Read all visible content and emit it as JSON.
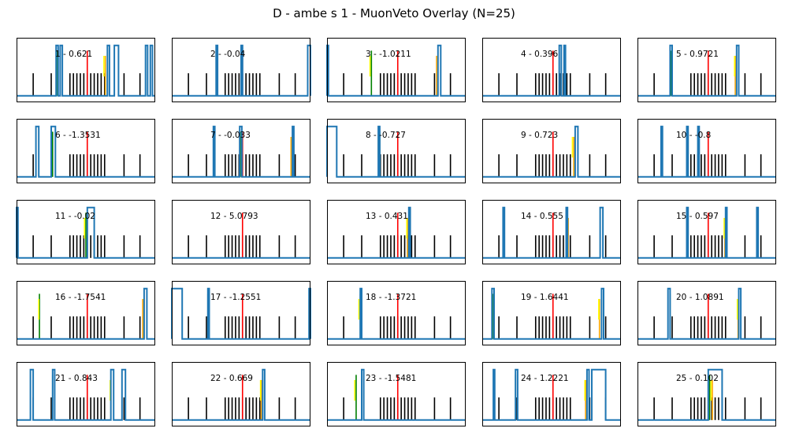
{
  "title": "D - ambe s 1 - MuonVeto Overlay (N=25)",
  "chart_data": {
    "type": "line",
    "title": "D - ambe s 1 - MuonVeto Overlay (N=25)",
    "xlim": [
      0,
      1
    ],
    "ylim": [
      0,
      1
    ],
    "baseline": 0.1,
    "colors": {
      "trace": "#1f77b4",
      "tick": "#000000",
      "red": "#ff0000",
      "green": "#008000",
      "yellow": "#ffff00",
      "orange": "#ffa500"
    },
    "reference_ticks": {
      "x": [
        0.12,
        0.25,
        0.385,
        0.41,
        0.435,
        0.46,
        0.485,
        0.51,
        0.535,
        0.56,
        0.585,
        0.61,
        0.635,
        0.775,
        0.89
      ],
      "height": 0.35
    },
    "red_line": {
      "x": 0.51,
      "height": 0.7
    },
    "panels": [
      {
        "label": "1 - 0.621",
        "green": 0.29,
        "yellow": 0.63,
        "orange": 0.64,
        "pulses": [
          [
            0.285,
            0.3
          ],
          [
            0.315,
            0.33
          ],
          [
            0.655,
            0.67
          ],
          [
            0.705,
            0.735
          ],
          [
            0.93,
            0.945
          ],
          [
            0.965,
            0.98
          ]
        ]
      },
      {
        "label": "2 - -0.04",
        "green": null,
        "yellow": null,
        "orange": 0.5,
        "pulses": [
          [
            0.32,
            0.33
          ],
          [
            0.5,
            0.51
          ],
          [
            0.98,
            1.0
          ]
        ]
      },
      {
        "label": "3 - -1.0211",
        "green": 0.32,
        "yellow": 0.31,
        "orange": 0.79,
        "pulses": [
          [
            0.0,
            0.01
          ],
          [
            0.8,
            0.82
          ]
        ]
      },
      {
        "label": "4 - 0.396",
        "green": null,
        "yellow": 0.59,
        "orange": 0.6,
        "pulses": [
          [
            0.555,
            0.57
          ],
          [
            0.59,
            0.6
          ]
        ]
      },
      {
        "label": "5 - 0.9721",
        "green": 0.24,
        "yellow": 0.7,
        "orange": 0.705,
        "pulses": [
          [
            0.235,
            0.25
          ],
          [
            0.715,
            0.73
          ]
        ]
      },
      {
        "label": "6 - -1.3531",
        "green": 0.26,
        "yellow": 0.25,
        "orange": null,
        "pulses": [
          [
            0.14,
            0.16
          ],
          [
            0.25,
            0.28
          ]
        ]
      },
      {
        "label": "7 - -0.033",
        "green": 0.5,
        "yellow": 0.49,
        "orange": 0.86,
        "pulses": [
          [
            0.3,
            0.31
          ],
          [
            0.49,
            0.505
          ],
          [
            0.87,
            0.88
          ]
        ]
      },
      {
        "label": "8 - -0.727",
        "green": 0.38,
        "yellow": 0.37,
        "orange": null,
        "pulses": [
          [
            0.0,
            0.07
          ],
          [
            0.37,
            0.38
          ]
        ]
      },
      {
        "label": "9 - 0.723",
        "green": null,
        "yellow": 0.65,
        "orange": 0.66,
        "pulses": [
          [
            0.67,
            0.69
          ]
        ]
      },
      {
        "label": "10 - -0.8",
        "green": 0.365,
        "yellow": 0.36,
        "orange": null,
        "pulses": [
          [
            0.17,
            0.18
          ],
          [
            0.355,
            0.365
          ],
          [
            0.435,
            0.445
          ]
        ]
      },
      {
        "label": "11 - -0.02",
        "green": 0.5,
        "yellow": 0.49,
        "orange": null,
        "pulses": [
          [
            0.0,
            0.01
          ],
          [
            0.51,
            0.56
          ]
        ]
      },
      {
        "label": "12 - 5.0793",
        "green": null,
        "yellow": null,
        "orange": null,
        "pulses": []
      },
      {
        "label": "13 - 0.431",
        "green": null,
        "yellow": 0.575,
        "orange": 0.58,
        "pulses": [
          [
            0.59,
            0.6
          ]
        ]
      },
      {
        "label": "14 - 0.555",
        "green": 0.15,
        "yellow": 0.61,
        "orange": 0.62,
        "pulses": [
          [
            0.15,
            0.16
          ],
          [
            0.605,
            0.615
          ],
          [
            0.85,
            0.87
          ]
        ]
      },
      {
        "label": "15 - 0.597",
        "green": 0.36,
        "yellow": 0.625,
        "orange": 0.63,
        "pulses": [
          [
            0.355,
            0.365
          ],
          [
            0.635,
            0.645
          ],
          [
            0.86,
            0.87
          ]
        ]
      },
      {
        "label": "16 - -1.7541",
        "green": 0.165,
        "yellow": 0.16,
        "orange": 0.91,
        "pulses": [
          [
            0.92,
            0.94
          ]
        ]
      },
      {
        "label": "17 - -1.2551",
        "green": 0.26,
        "yellow": 0.265,
        "orange": 0.99,
        "pulses": [
          [
            0.0,
            0.075
          ],
          [
            0.26,
            0.27
          ],
          [
            0.99,
            1.0
          ]
        ]
      },
      {
        "label": "18 - -1.3721",
        "green": 0.24,
        "yellow": 0.23,
        "orange": null,
        "pulses": [
          [
            0.24,
            0.25
          ]
        ]
      },
      {
        "label": "19 - 1.6441",
        "green": 0.08,
        "yellow": 0.84,
        "orange": 0.845,
        "pulses": [
          [
            0.07,
            0.085
          ],
          [
            0.86,
            0.875
          ]
        ]
      },
      {
        "label": "20 - 1.0891",
        "green": 0.235,
        "yellow": 0.72,
        "orange": 0.725,
        "pulses": [
          [
            0.22,
            0.235
          ],
          [
            0.73,
            0.745
          ]
        ]
      },
      {
        "label": "21 - 0.843",
        "green": 0.26,
        "yellow": 0.675,
        "orange": 0.68,
        "pulses": [
          [
            0.1,
            0.12
          ],
          [
            0.26,
            0.275
          ],
          [
            0.68,
            0.7
          ],
          [
            0.76,
            0.785
          ]
        ]
      },
      {
        "label": "22 - 0.669",
        "green": null,
        "yellow": 0.64,
        "orange": 0.645,
        "pulses": [
          [
            0.655,
            0.67
          ]
        ]
      },
      {
        "label": "23 - -1.5481",
        "green": 0.21,
        "yellow": 0.2,
        "orange": null,
        "pulses": [
          [
            0.25,
            0.265
          ]
        ]
      },
      {
        "label": "24 - 1.2221",
        "green": 0.24,
        "yellow": 0.74,
        "orange": 0.745,
        "pulses": [
          [
            0.08,
            0.09
          ],
          [
            0.24,
            0.255
          ],
          [
            0.755,
            0.77
          ],
          [
            0.79,
            0.89
          ]
        ]
      },
      {
        "label": "25 - 0.102",
        "green": 0.52,
        "yellow": 0.53,
        "orange": 0.54,
        "pulses": [
          [
            0.51,
            0.61
          ]
        ]
      }
    ]
  }
}
